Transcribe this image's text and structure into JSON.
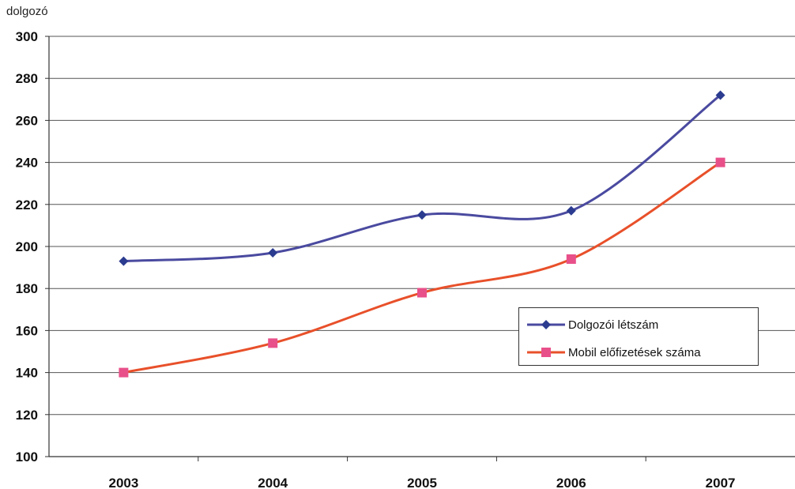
{
  "chart_data": {
    "type": "line",
    "ylabel": "dolgozó",
    "xlabel": "",
    "title": "",
    "categories": [
      "2003",
      "2004",
      "2005",
      "2006",
      "2007"
    ],
    "ylim": [
      100,
      300
    ],
    "yticks": [
      100,
      120,
      140,
      160,
      180,
      200,
      220,
      240,
      260,
      280,
      300
    ],
    "grid": true,
    "legend_position": "right",
    "smooth": true,
    "series": [
      {
        "name": "Dolgozói létszám",
        "values": [
          193,
          197,
          215,
          217,
          272
        ],
        "color": "#4a4aa0",
        "marker": "diamond",
        "marker_color": "#2b3b8f"
      },
      {
        "name": "Mobil előfizetések száma",
        "values": [
          140,
          154,
          178,
          194,
          240
        ],
        "color": "#e8502a",
        "marker": "square",
        "marker_color": "#e8508a"
      }
    ]
  }
}
